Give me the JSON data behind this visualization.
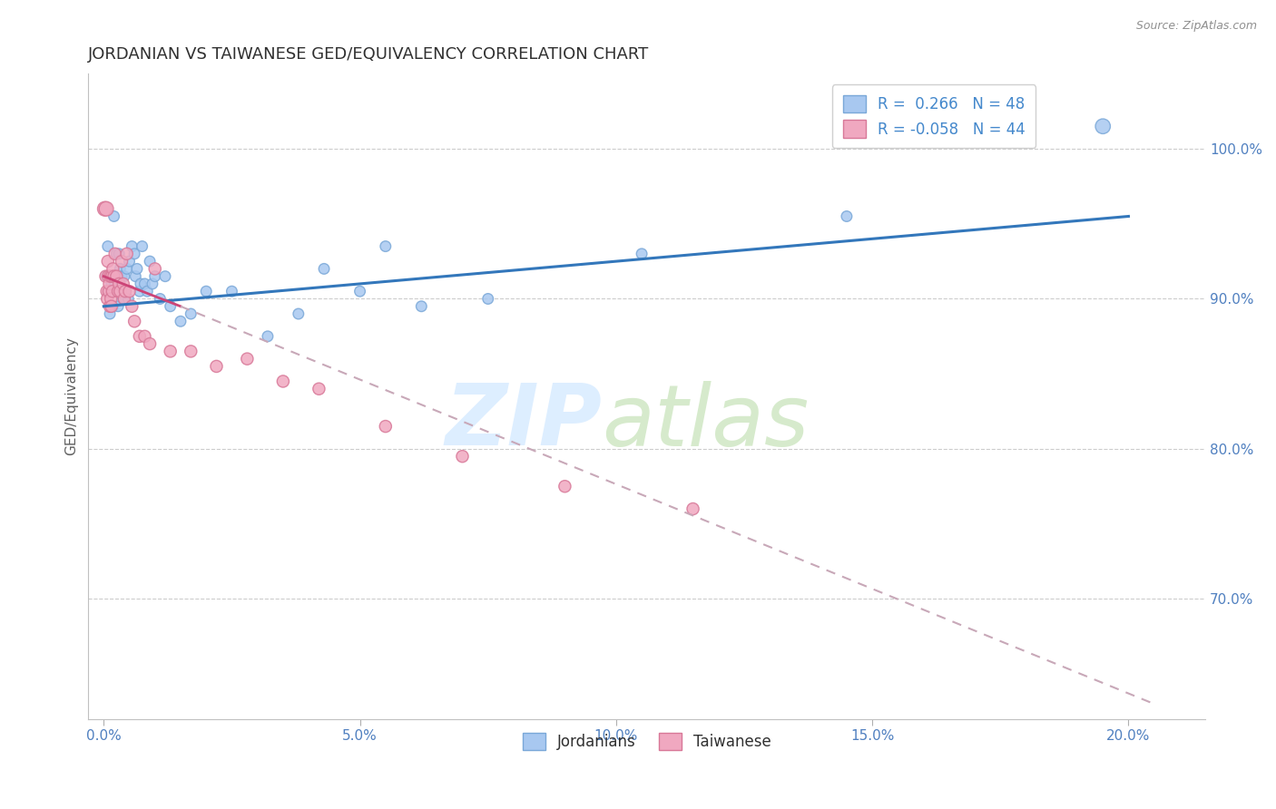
{
  "title": "JORDANIAN VS TAIWANESE GED/EQUIVALENCY CORRELATION CHART",
  "source_text": "Source: ZipAtlas.com",
  "ylabel": "GED/Equivalency",
  "x_tick_labels": [
    "0.0%",
    "5.0%",
    "10.0%",
    "15.0%",
    "20.0%"
  ],
  "x_tick_positions": [
    0.0,
    5.0,
    10.0,
    15.0,
    20.0
  ],
  "y_tick_labels": [
    "70.0%",
    "80.0%",
    "90.0%",
    "100.0%"
  ],
  "y_tick_positions": [
    70.0,
    80.0,
    90.0,
    100.0
  ],
  "ylim": [
    62.0,
    105.0
  ],
  "xlim": [
    -0.3,
    21.5
  ],
  "jordanian_color": "#a8c8f0",
  "taiwanese_color": "#f0a8c0",
  "jordanian_edge": "#7aa8d8",
  "taiwanese_edge": "#d87898",
  "trendline_jordan_color": "#3377bb",
  "trendline_taiwan_color": "#cc4477",
  "trendline_taiwan_dash_color": "#c8a8b8",
  "jordanians_label": "Jordanians",
  "taiwanese_label": "Taiwanese",
  "background_color": "#ffffff",
  "grid_color": "#cccccc",
  "title_color": "#303030",
  "axis_label_color": "#606060",
  "tick_label_color": "#5080c0",
  "right_ytick_color": "#5080c0",
  "legend_r_color": "#4488cc",
  "jordanian_x": [
    0.05,
    0.08,
    0.1,
    0.12,
    0.15,
    0.18,
    0.2,
    0.22,
    0.25,
    0.28,
    0.3,
    0.32,
    0.35,
    0.38,
    0.4,
    0.42,
    0.45,
    0.48,
    0.5,
    0.55,
    0.6,
    0.62,
    0.65,
    0.7,
    0.72,
    0.75,
    0.8,
    0.85,
    0.9,
    0.95,
    1.0,
    1.1,
    1.2,
    1.3,
    1.5,
    1.7,
    2.0,
    2.5,
    3.2,
    3.8,
    4.3,
    5.0,
    5.5,
    6.2,
    7.5,
    10.5,
    14.5,
    19.5
  ],
  "jordanian_y": [
    91.5,
    93.5,
    90.5,
    89.0,
    91.0,
    89.5,
    95.5,
    91.0,
    93.0,
    89.5,
    93.0,
    92.0,
    91.5,
    90.0,
    91.5,
    90.5,
    92.0,
    90.0,
    92.5,
    93.5,
    93.0,
    91.5,
    92.0,
    90.5,
    91.0,
    93.5,
    91.0,
    90.5,
    92.5,
    91.0,
    91.5,
    90.0,
    91.5,
    89.5,
    88.5,
    89.0,
    90.5,
    90.5,
    87.5,
    89.0,
    92.0,
    90.5,
    93.5,
    89.5,
    90.0,
    93.0,
    95.5,
    101.5
  ],
  "jordanian_size": [
    70,
    70,
    70,
    70,
    70,
    70,
    70,
    70,
    70,
    70,
    70,
    70,
    70,
    70,
    70,
    70,
    70,
    70,
    70,
    70,
    70,
    70,
    70,
    70,
    70,
    70,
    70,
    70,
    70,
    70,
    70,
    70,
    70,
    70,
    70,
    70,
    70,
    70,
    70,
    70,
    70,
    70,
    70,
    70,
    70,
    70,
    70,
    140
  ],
  "taiwanese_x": [
    0.02,
    0.04,
    0.06,
    0.07,
    0.08,
    0.09,
    0.1,
    0.11,
    0.12,
    0.13,
    0.14,
    0.15,
    0.16,
    0.17,
    0.18,
    0.2,
    0.22,
    0.25,
    0.28,
    0.3,
    0.32,
    0.35,
    0.38,
    0.4,
    0.42,
    0.45,
    0.5,
    0.55,
    0.6,
    0.7,
    0.8,
    0.9,
    1.0,
    1.3,
    1.7,
    2.2,
    2.8,
    3.5,
    4.2,
    5.5,
    7.0,
    9.0,
    11.5,
    0.05
  ],
  "taiwanese_y": [
    96.0,
    91.5,
    90.5,
    90.0,
    92.5,
    91.5,
    90.5,
    91.0,
    89.5,
    91.5,
    90.0,
    89.5,
    91.5,
    90.5,
    92.0,
    91.5,
    93.0,
    91.5,
    90.5,
    91.0,
    90.5,
    92.5,
    91.0,
    90.0,
    90.5,
    93.0,
    90.5,
    89.5,
    88.5,
    87.5,
    87.5,
    87.0,
    92.0,
    86.5,
    86.5,
    85.5,
    86.0,
    84.5,
    84.0,
    81.5,
    79.5,
    77.5,
    76.0,
    96.0
  ],
  "taiwanese_size": [
    130,
    90,
    90,
    90,
    90,
    90,
    90,
    90,
    90,
    90,
    90,
    90,
    90,
    90,
    90,
    90,
    90,
    90,
    90,
    90,
    90,
    90,
    90,
    90,
    90,
    90,
    90,
    90,
    90,
    90,
    90,
    90,
    90,
    90,
    90,
    90,
    90,
    90,
    90,
    90,
    90,
    90,
    90,
    130
  ],
  "jordan_trend_x0": 0.0,
  "jordan_trend_y0": 89.5,
  "jordan_trend_x1": 20.0,
  "jordan_trend_y1": 95.5,
  "taiwan_solid_x0": 0.0,
  "taiwan_solid_y0": 91.5,
  "taiwan_solid_x1": 1.5,
  "taiwan_solid_y1": 89.5,
  "taiwan_dash_x0": 1.5,
  "taiwan_dash_y0": 89.5,
  "taiwan_dash_x1": 20.5,
  "taiwan_dash_y1": 63.0
}
